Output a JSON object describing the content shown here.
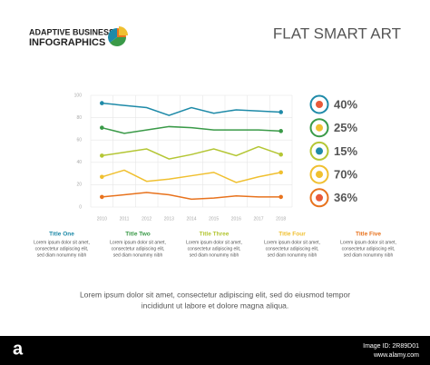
{
  "header": {
    "brand_line1": "ADAPTIVE BUSINESS",
    "brand_line2": "INFOGRAPHICS",
    "title": "FLAT SMART ART"
  },
  "chart_data": {
    "type": "line",
    "categories": [
      "2010",
      "2011",
      "2012",
      "2013",
      "2014",
      "2015",
      "2016",
      "2017",
      "2018"
    ],
    "series": [
      {
        "color": "#1e8aa8",
        "values": [
          93,
          91,
          89,
          82,
          89,
          84,
          87,
          86,
          85
        ]
      },
      {
        "color": "#3a9a48",
        "values": [
          71,
          66,
          69,
          72,
          71,
          69,
          69,
          69,
          68
        ]
      },
      {
        "color": "#b4c634",
        "values": [
          46,
          49,
          52,
          43,
          47,
          52,
          46,
          54,
          47
        ]
      },
      {
        "color": "#f0c030",
        "values": [
          27,
          33,
          23,
          25,
          28,
          31,
          22,
          27,
          31
        ]
      },
      {
        "color": "#e8731e",
        "values": [
          9,
          11,
          13,
          11,
          7,
          8,
          10,
          9,
          9
        ]
      }
    ],
    "ylim": [
      0,
      100
    ],
    "yticks": [
      0,
      20,
      40,
      60,
      80,
      100
    ],
    "grid": true
  },
  "stats": [
    "40%",
    "25%",
    "15%",
    "70%",
    "36%"
  ],
  "columns": [
    {
      "title": "Title One",
      "lines": [
        "Lorem ipsum dolor sit amet,",
        "consectetur adipiscing elit,",
        "sed diam nonummy nibh"
      ]
    },
    {
      "title": "Title Two",
      "lines": [
        "Lorem ipsum dolor sit amet,",
        "consectetur adipiscing elit,",
        "sed diam nonummy nibh"
      ]
    },
    {
      "title": "Title Three",
      "lines": [
        "Lorem ipsum dolor sit amet,",
        "consectetur adipiscing elit,",
        "sed diam nonummy nibh"
      ]
    },
    {
      "title": "Title Four",
      "lines": [
        "Lorem ipsum dolor sit amet,",
        "consectetur adipiscing elit,",
        "sed diam nonummy nibh"
      ]
    },
    {
      "title": "Title Five",
      "lines": [
        "Lorem ipsum dolor sit amet,",
        "consectetur adipiscing elit,",
        "sed diam nonummy nibh"
      ]
    }
  ],
  "footer_text": [
    "Lorem ipsum dolor sit amet, consectetur adipiscing elit, sed do eiusmod tempor",
    "incididunt ut labore et dolore magna aliqua."
  ],
  "watermark": {
    "logo": "a",
    "image_id": "Image ID: 2R89D01",
    "site": "www.alamy.com"
  }
}
